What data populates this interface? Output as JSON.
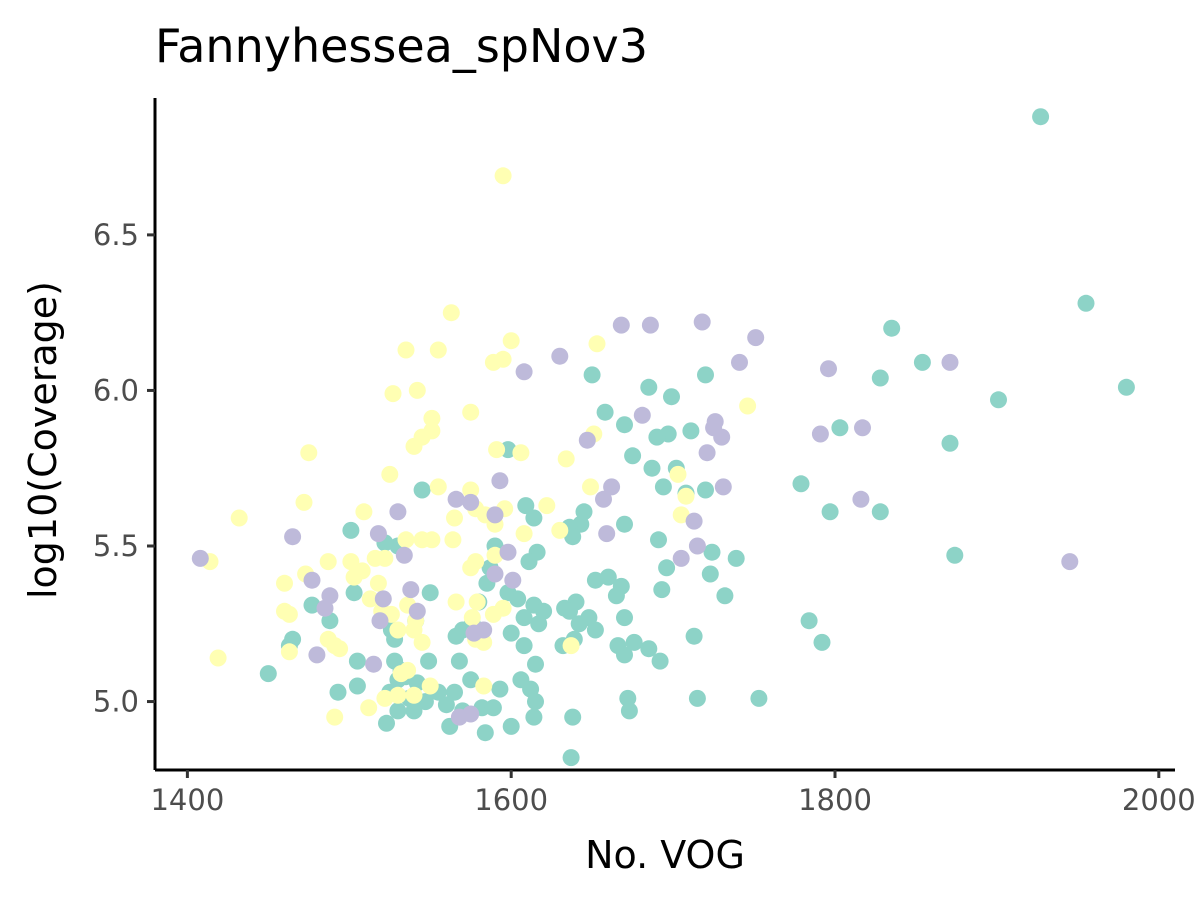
{
  "chart_data": {
    "type": "scatter",
    "title": "Fannyhessea_spNov3",
    "xlabel": "No. VOG",
    "ylabel": "log10(Coverage)",
    "xlim": [
      1380,
      2010
    ],
    "ylim": [
      4.78,
      6.94
    ],
    "x_ticks": [
      1400,
      1600,
      1800,
      2000
    ],
    "y_ticks": [
      5.0,
      5.5,
      6.0,
      6.5
    ],
    "x_tick_labels": [
      "1400",
      "1600",
      "1800",
      "2000"
    ],
    "y_tick_labels": [
      "5.0",
      "5.5",
      "6.0",
      "6.5"
    ],
    "grid": false,
    "legend": "none",
    "series": [
      {
        "color": "#8dd3c7",
        "points": [
          [
            1927,
            6.88
          ],
          [
            1955,
            6.28
          ],
          [
            1980,
            6.01
          ],
          [
            1901,
            5.97
          ],
          [
            1871,
            5.83
          ],
          [
            1874,
            5.47
          ],
          [
            1835,
            6.2
          ],
          [
            1828,
            6.04
          ],
          [
            1854,
            6.09
          ],
          [
            1803,
            5.88
          ],
          [
            1797,
            5.61
          ],
          [
            1828,
            5.61
          ],
          [
            1779,
            5.7
          ],
          [
            1784,
            5.26
          ],
          [
            1792,
            5.19
          ],
          [
            1753,
            5.01
          ],
          [
            1739,
            5.46
          ],
          [
            1732,
            5.34
          ],
          [
            1724,
            5.48
          ],
          [
            1723,
            5.41
          ],
          [
            1720,
            6.05
          ],
          [
            1711,
            5.87
          ],
          [
            1720,
            5.68
          ],
          [
            1708,
            5.67
          ],
          [
            1702,
            5.75
          ],
          [
            1699,
            5.98
          ],
          [
            1697,
            5.86
          ],
          [
            1690,
            5.85
          ],
          [
            1694,
            5.69
          ],
          [
            1691,
            5.52
          ],
          [
            1696,
            5.43
          ],
          [
            1693,
            5.36
          ],
          [
            1685,
            6.01
          ],
          [
            1687,
            5.75
          ],
          [
            1675,
            5.79
          ],
          [
            1670,
            5.89
          ],
          [
            1670,
            5.57
          ],
          [
            1670,
            5.27
          ],
          [
            1668,
            5.37
          ],
          [
            1666,
            5.18
          ],
          [
            1670,
            5.15
          ],
          [
            1676,
            5.19
          ],
          [
            1685,
            5.17
          ],
          [
            1692,
            5.13
          ],
          [
            1672,
            5.01
          ],
          [
            1673,
            4.97
          ],
          [
            1713,
            5.21
          ],
          [
            1715,
            5.01
          ],
          [
            1658,
            5.93
          ],
          [
            1650,
            6.05
          ],
          [
            1660,
            5.4
          ],
          [
            1665,
            5.34
          ],
          [
            1652,
            5.39
          ],
          [
            1648,
            5.27
          ],
          [
            1652,
            5.23
          ],
          [
            1645,
            5.61
          ],
          [
            1643,
            5.57
          ],
          [
            1636,
            5.56
          ],
          [
            1638,
            5.53
          ],
          [
            1633,
            5.3
          ],
          [
            1640,
            5.32
          ],
          [
            1636,
            5.29
          ],
          [
            1642,
            5.25
          ],
          [
            1639,
            5.2
          ],
          [
            1632,
            5.18
          ],
          [
            1638,
            4.95
          ],
          [
            1637,
            4.82
          ],
          [
            1598,
            5.81
          ],
          [
            1609,
            5.63
          ],
          [
            1614,
            5.59
          ],
          [
            1616,
            5.48
          ],
          [
            1611,
            5.45
          ],
          [
            1598,
            5.35
          ],
          [
            1604,
            5.33
          ],
          [
            1614,
            5.31
          ],
          [
            1620,
            5.29
          ],
          [
            1617,
            5.25
          ],
          [
            1608,
            5.27
          ],
          [
            1600,
            5.22
          ],
          [
            1608,
            5.18
          ],
          [
            1615,
            5.12
          ],
          [
            1606,
            5.07
          ],
          [
            1612,
            5.04
          ],
          [
            1615,
            5.0
          ],
          [
            1614,
            4.95
          ],
          [
            1600,
            4.92
          ],
          [
            1590,
            5.5
          ],
          [
            1587,
            5.43
          ],
          [
            1585,
            5.38
          ],
          [
            1580,
            5.32
          ],
          [
            1576,
            5.25
          ],
          [
            1570,
            5.23
          ],
          [
            1566,
            5.21
          ],
          [
            1568,
            5.13
          ],
          [
            1575,
            5.07
          ],
          [
            1565,
            5.03
          ],
          [
            1560,
            4.99
          ],
          [
            1570,
            4.97
          ],
          [
            1582,
            4.98
          ],
          [
            1589,
            4.98
          ],
          [
            1593,
            5.04
          ],
          [
            1584,
            4.9
          ],
          [
            1562,
            4.92
          ],
          [
            1555,
            5.03
          ],
          [
            1549,
            5.13
          ],
          [
            1547,
            5.0
          ],
          [
            1542,
            5.06
          ],
          [
            1535,
            5.08
          ],
          [
            1537,
            5.01
          ],
          [
            1540,
            4.97
          ],
          [
            1530,
            4.97
          ],
          [
            1523,
            4.93
          ],
          [
            1525,
            5.03
          ],
          [
            1530,
            5.07
          ],
          [
            1528,
            5.13
          ],
          [
            1532,
            5.1
          ],
          [
            1528,
            5.2
          ],
          [
            1526,
            5.23
          ],
          [
            1530,
            5.5
          ],
          [
            1522,
            5.51
          ],
          [
            1550,
            5.35
          ],
          [
            1545,
            5.68
          ],
          [
            1541,
            5.26
          ],
          [
            1501,
            5.55
          ],
          [
            1503,
            5.35
          ],
          [
            1505,
            5.13
          ],
          [
            1505,
            5.05
          ],
          [
            1493,
            5.03
          ],
          [
            1488,
            5.26
          ],
          [
            1477,
            5.31
          ],
          [
            1465,
            5.2
          ],
          [
            1463,
            5.18
          ],
          [
            1450,
            5.09
          ]
        ]
      },
      {
        "color": "#ffffb3",
        "points": [
          [
            1595,
            6.69
          ],
          [
            1563,
            6.25
          ],
          [
            1600,
            6.16
          ],
          [
            1589,
            6.09
          ],
          [
            1595,
            6.1
          ],
          [
            1555,
            6.13
          ],
          [
            1535,
            6.13
          ],
          [
            1527,
            5.99
          ],
          [
            1542,
            6.0
          ],
          [
            1551,
            5.91
          ],
          [
            1551,
            5.87
          ],
          [
            1545,
            5.85
          ],
          [
            1540,
            5.82
          ],
          [
            1525,
            5.73
          ],
          [
            1575,
            5.93
          ],
          [
            1591,
            5.81
          ],
          [
            1606,
            5.8
          ],
          [
            1653,
            6.15
          ],
          [
            1651,
            5.86
          ],
          [
            1634,
            5.78
          ],
          [
            1649,
            5.69
          ],
          [
            1746,
            5.95
          ],
          [
            1703,
            5.73
          ],
          [
            1708,
            5.66
          ],
          [
            1705,
            5.6
          ],
          [
            1575,
            5.68
          ],
          [
            1578,
            5.62
          ],
          [
            1584,
            5.6
          ],
          [
            1596,
            5.62
          ],
          [
            1590,
            5.57
          ],
          [
            1608,
            5.54
          ],
          [
            1622,
            5.63
          ],
          [
            1630,
            5.55
          ],
          [
            1637,
            5.18
          ],
          [
            1509,
            5.61
          ],
          [
            1545,
            5.52
          ],
          [
            1535,
            5.52
          ],
          [
            1551,
            5.52
          ],
          [
            1564,
            5.52
          ],
          [
            1555,
            5.69
          ],
          [
            1475,
            5.8
          ],
          [
            1472,
            5.64
          ],
          [
            1432,
            5.59
          ],
          [
            1414,
            5.45
          ],
          [
            1419,
            5.14
          ],
          [
            1460,
            5.38
          ],
          [
            1460,
            5.29
          ],
          [
            1463,
            5.28
          ],
          [
            1463,
            5.16
          ],
          [
            1473,
            5.41
          ],
          [
            1487,
            5.45
          ],
          [
            1501,
            5.45
          ],
          [
            1508,
            5.42
          ],
          [
            1503,
            5.4
          ],
          [
            1516,
            5.46
          ],
          [
            1522,
            5.46
          ],
          [
            1518,
            5.38
          ],
          [
            1513,
            5.33
          ],
          [
            1520,
            5.29
          ],
          [
            1526,
            5.28
          ],
          [
            1536,
            5.31
          ],
          [
            1541,
            5.26
          ],
          [
            1530,
            5.23
          ],
          [
            1540,
            5.23
          ],
          [
            1545,
            5.19
          ],
          [
            1536,
            5.1
          ],
          [
            1532,
            5.09
          ],
          [
            1522,
            5.01
          ],
          [
            1512,
            4.98
          ],
          [
            1540,
            5.02
          ],
          [
            1530,
            5.02
          ],
          [
            1550,
            5.05
          ],
          [
            1487,
            5.2
          ],
          [
            1491,
            5.18
          ],
          [
            1494,
            5.17
          ],
          [
            1491,
            4.95
          ],
          [
            1575,
            5.43
          ],
          [
            1578,
            5.45
          ],
          [
            1590,
            5.47
          ],
          [
            1595,
            5.3
          ],
          [
            1589,
            5.28
          ],
          [
            1583,
            5.19
          ],
          [
            1578,
            5.2
          ],
          [
            1576,
            5.27
          ],
          [
            1579,
            5.32
          ],
          [
            1566,
            5.32
          ],
          [
            1583,
            5.05
          ],
          [
            1565,
            5.59
          ]
        ]
      },
      {
        "color": "#bebada",
        "points": [
          [
            1668,
            6.21
          ],
          [
            1686,
            6.21
          ],
          [
            1718,
            6.22
          ],
          [
            1751,
            6.17
          ],
          [
            1630,
            6.11
          ],
          [
            1608,
            6.06
          ],
          [
            1741,
            6.09
          ],
          [
            1796,
            6.07
          ],
          [
            1871,
            6.09
          ],
          [
            1726,
            5.9
          ],
          [
            1725,
            5.88
          ],
          [
            1730,
            5.85
          ],
          [
            1681,
            5.92
          ],
          [
            1647,
            5.84
          ],
          [
            1791,
            5.86
          ],
          [
            1817,
            5.88
          ],
          [
            1721,
            5.8
          ],
          [
            1593,
            5.71
          ],
          [
            1662,
            5.69
          ],
          [
            1657,
            5.65
          ],
          [
            1731,
            5.69
          ],
          [
            1816,
            5.65
          ],
          [
            1945,
            5.45
          ],
          [
            1713,
            5.58
          ],
          [
            1715,
            5.5
          ],
          [
            1705,
            5.46
          ],
          [
            1659,
            5.54
          ],
          [
            1575,
            5.64
          ],
          [
            1566,
            5.65
          ],
          [
            1590,
            5.6
          ],
          [
            1530,
            5.61
          ],
          [
            1518,
            5.54
          ],
          [
            1534,
            5.47
          ],
          [
            1465,
            5.53
          ],
          [
            1408,
            5.46
          ],
          [
            1598,
            5.48
          ],
          [
            1601,
            5.39
          ],
          [
            1590,
            5.41
          ],
          [
            1538,
            5.36
          ],
          [
            1542,
            5.29
          ],
          [
            1521,
            5.33
          ],
          [
            1519,
            5.26
          ],
          [
            1477,
            5.39
          ],
          [
            1488,
            5.34
          ],
          [
            1485,
            5.3
          ],
          [
            1480,
            5.15
          ],
          [
            1515,
            5.12
          ],
          [
            1583,
            5.23
          ],
          [
            1577,
            5.22
          ],
          [
            1575,
            4.96
          ],
          [
            1568,
            4.95
          ]
        ]
      }
    ]
  }
}
